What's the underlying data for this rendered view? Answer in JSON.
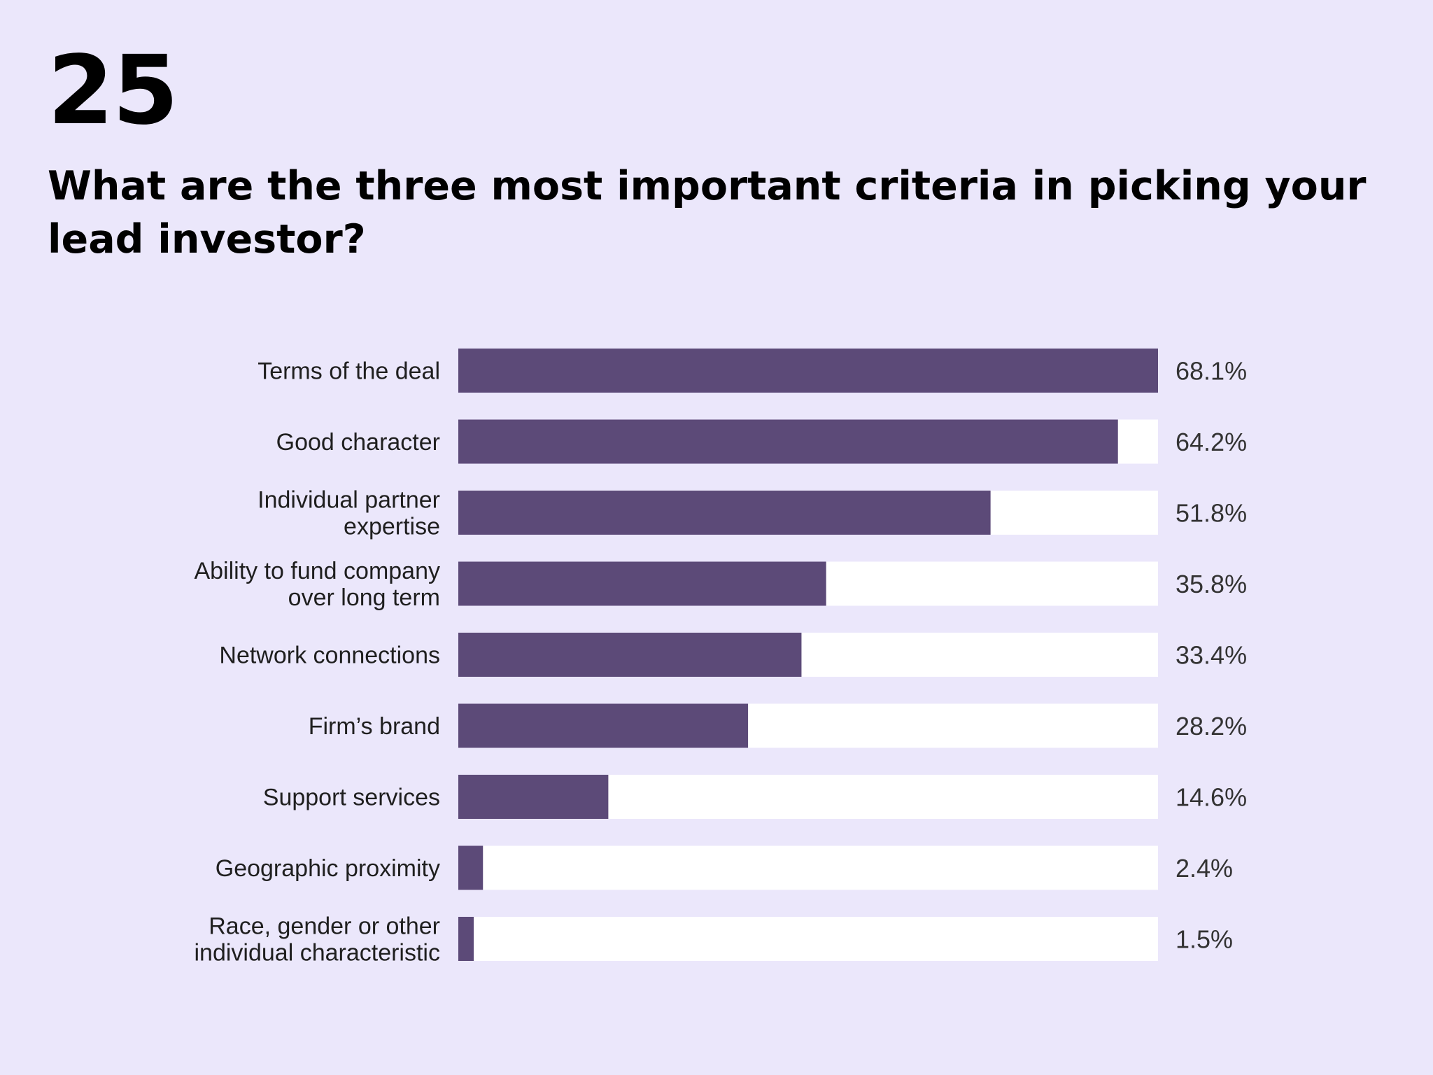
{
  "page": {
    "number": "25",
    "title": "What are the three most important criteria in picking your lead investor?"
  },
  "colors": {
    "background": "#ebe7fb",
    "bar_fill": "#5c4a78",
    "bar_track": "#ffffff"
  },
  "chart_data": {
    "type": "bar",
    "orientation": "horizontal",
    "title": "What are the three most important criteria in picking your lead investor?",
    "categories": [
      [
        "Terms of the deal"
      ],
      [
        "Good character"
      ],
      [
        "Individual partner",
        "expertise"
      ],
      [
        "Ability to fund company",
        "over long term"
      ],
      [
        "Network connections"
      ],
      [
        "Firm’s brand"
      ],
      [
        "Support services"
      ],
      [
        "Geographic proximity"
      ],
      [
        "Race, gender or other",
        "individual characteristic"
      ]
    ],
    "values": [
      68.1,
      64.2,
      51.8,
      35.8,
      33.4,
      28.2,
      14.6,
      2.4,
      1.5
    ],
    "value_labels": [
      "68.1%",
      "64.2%",
      "51.8%",
      "35.8%",
      "33.4%",
      "28.2%",
      "14.6%",
      "2.4%",
      "1.5%"
    ],
    "unit": "%",
    "xlim": [
      0,
      68.1
    ],
    "grid": false,
    "legend": "none"
  }
}
